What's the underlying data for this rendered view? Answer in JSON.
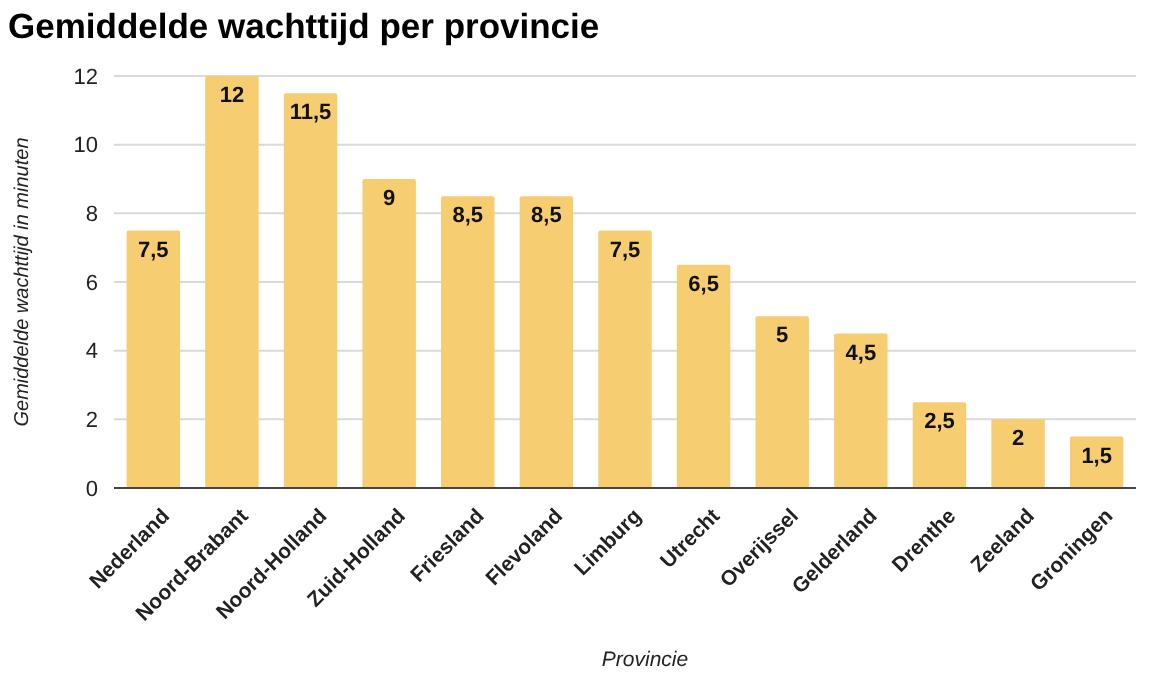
{
  "chart_data": {
    "type": "bar",
    "title": "Gemiddelde wachttijd per provincie",
    "xlabel": "Provincie",
    "ylabel": "Gemiddelde wachttijd in minuten",
    "categories": [
      "Nederland",
      "Noord-Brabant",
      "Noord-Holland",
      "Zuid-Holland",
      "Friesland",
      "Flevoland",
      "Limburg",
      "Utrecht",
      "Overijssel",
      "Gelderland",
      "Drenthe",
      "Zeeland",
      "Groningen"
    ],
    "values": [
      7.5,
      12,
      11.5,
      9,
      8.5,
      8.5,
      7.5,
      6.5,
      5,
      4.5,
      2.5,
      2,
      1.5
    ],
    "value_labels": [
      "7,5",
      "12",
      "11,5",
      "9",
      "8,5",
      "8,5",
      "7,5",
      "6,5",
      "5",
      "4,5",
      "2,5",
      "2",
      "1,5"
    ],
    "color": "#f6cd71",
    "ylim": [
      0,
      12
    ],
    "yticks": [
      0,
      2,
      4,
      6,
      8,
      10,
      12
    ],
    "grid": "y"
  }
}
